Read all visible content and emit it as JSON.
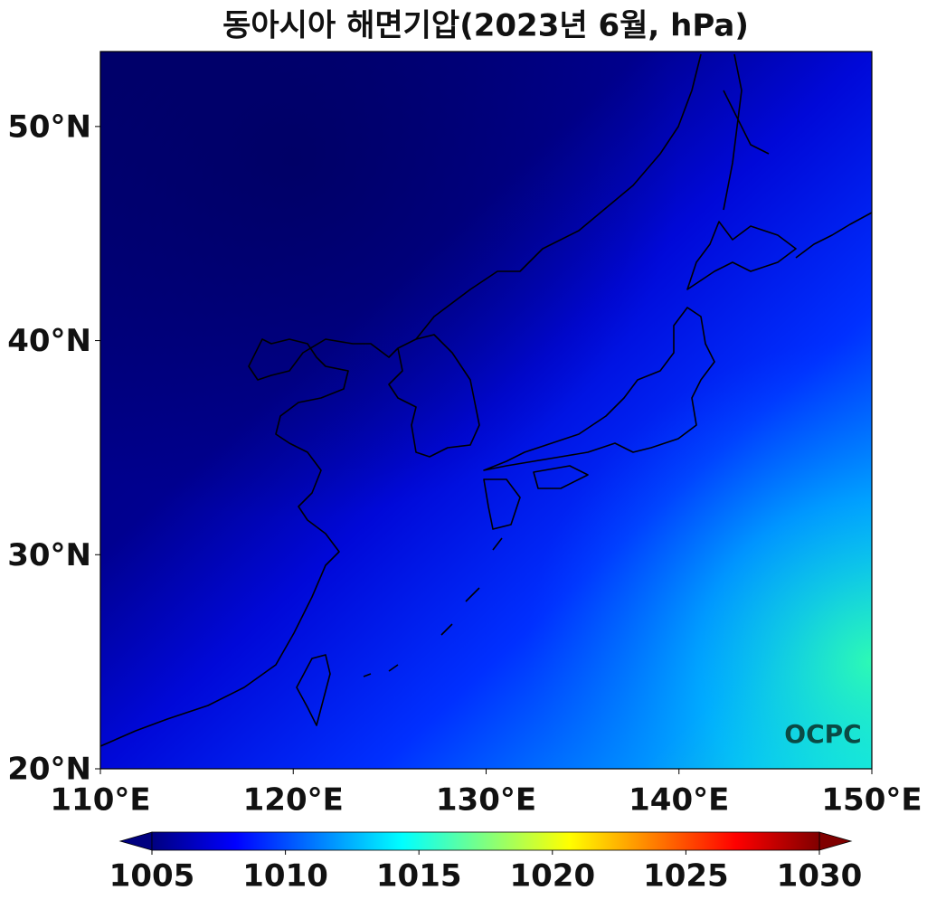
{
  "chart_data": {
    "type": "map",
    "title": "동아시아 해면기압(2023년 6월, hPa)",
    "xlim": [
      110,
      150
    ],
    "ylim": [
      20,
      53.5
    ],
    "xticks": [
      {
        "value": 110,
        "label": "110°E"
      },
      {
        "value": 120,
        "label": "120°E"
      },
      {
        "value": 130,
        "label": "130°E"
      },
      {
        "value": 140,
        "label": "140°E"
      },
      {
        "value": 150,
        "label": "150°E"
      }
    ],
    "yticks": [
      {
        "value": 20,
        "label": "20°N"
      },
      {
        "value": 30,
        "label": "30°N"
      },
      {
        "value": 40,
        "label": "40°N"
      },
      {
        "value": 50,
        "label": "50°N"
      }
    ],
    "colorbar": {
      "colormap": "jet",
      "clim": [
        1005,
        1030
      ],
      "ticks": [
        1005,
        1010,
        1015,
        1020,
        1025,
        1030
      ],
      "extend": "both"
    },
    "annotations": [
      "OCPC"
    ]
  }
}
